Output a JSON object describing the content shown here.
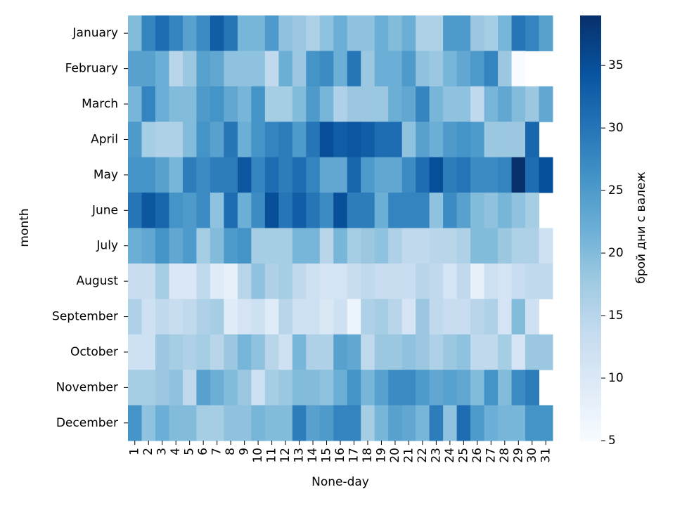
{
  "chart_data": {
    "type": "heatmap",
    "xlabel": "None-day",
    "ylabel": "month",
    "colorbar_label": "брой дни с валеж",
    "colormap": "Blues",
    "x": [
      1,
      2,
      3,
      4,
      5,
      6,
      7,
      8,
      9,
      10,
      11,
      12,
      13,
      14,
      15,
      16,
      17,
      18,
      19,
      20,
      21,
      22,
      23,
      24,
      25,
      26,
      27,
      28,
      29,
      30,
      31
    ],
    "y": [
      "January",
      "February",
      "March",
      "April",
      "May",
      "June",
      "July",
      "August",
      "September",
      "October",
      "November",
      "December"
    ],
    "values": [
      [
        20,
        28,
        31,
        28,
        24,
        27,
        33,
        30,
        21,
        21,
        25,
        19,
        18,
        16,
        19,
        22,
        19,
        19,
        22,
        20,
        22,
        16,
        16,
        25,
        25,
        18,
        17,
        21,
        30,
        28,
        24
      ],
      [
        24,
        24,
        22,
        15,
        18,
        24,
        23,
        19,
        19,
        19,
        14,
        22,
        18,
        26,
        27,
        22,
        30,
        18,
        22,
        22,
        25,
        19,
        18,
        21,
        23,
        25,
        28,
        18,
        5,
        null,
        null
      ],
      [
        21,
        28,
        22,
        20,
        20,
        25,
        26,
        23,
        21,
        26,
        17,
        17,
        20,
        25,
        21,
        16,
        18,
        18,
        18,
        22,
        23,
        28,
        21,
        19,
        19,
        14,
        21,
        23,
        20,
        18,
        23
      ],
      [
        25,
        17,
        16,
        16,
        20,
        26,
        24,
        30,
        22,
        26,
        28,
        29,
        25,
        30,
        35,
        33,
        34,
        33,
        31,
        31,
        19,
        24,
        22,
        25,
        26,
        25,
        18,
        18,
        18,
        32,
        null
      ],
      [
        26,
        26,
        24,
        21,
        29,
        27,
        29,
        29,
        34,
        28,
        31,
        29,
        31,
        28,
        23,
        23,
        32,
        25,
        23,
        23,
        27,
        31,
        35,
        29,
        30,
        27,
        27,
        28,
        39,
        31,
        35
      ],
      [
        30,
        34,
        32,
        26,
        25,
        27,
        19,
        31,
        22,
        27,
        35,
        30,
        33,
        30,
        27,
        35,
        29,
        29,
        22,
        28,
        28,
        28,
        19,
        27,
        24,
        20,
        19,
        21,
        19,
        17,
        null
      ],
      [
        22,
        23,
        26,
        23,
        25,
        17,
        20,
        25,
        26,
        17,
        17,
        17,
        21,
        21,
        15,
        21,
        17,
        18,
        19,
        16,
        14,
        14,
        15,
        15,
        16,
        20,
        20,
        18,
        16,
        16,
        12
      ],
      [
        13,
        13,
        17,
        10,
        10,
        14,
        9,
        8,
        15,
        19,
        16,
        17,
        14,
        12,
        11,
        11,
        13,
        14,
        13,
        13,
        13,
        15,
        14,
        11,
        14,
        8,
        12,
        11,
        13,
        14,
        14
      ],
      [
        16,
        12,
        14,
        13,
        14,
        16,
        17,
        9,
        11,
        12,
        9,
        15,
        12,
        12,
        10,
        12,
        7,
        16,
        17,
        15,
        11,
        18,
        14,
        13,
        13,
        15,
        16,
        11,
        20,
        12,
        null
      ],
      [
        12,
        12,
        18,
        17,
        16,
        17,
        15,
        18,
        21,
        19,
        15,
        12,
        21,
        16,
        16,
        24,
        23,
        14,
        18,
        18,
        19,
        18,
        16,
        18,
        19,
        14,
        14,
        17,
        11,
        18,
        18
      ],
      [
        17,
        17,
        18,
        19,
        14,
        24,
        22,
        20,
        18,
        12,
        17,
        18,
        20,
        20,
        19,
        22,
        26,
        21,
        24,
        27,
        27,
        25,
        23,
        24,
        23,
        20,
        26,
        20,
        27,
        29,
        null
      ],
      [
        26,
        19,
        22,
        20,
        20,
        17,
        17,
        19,
        19,
        21,
        20,
        20,
        29,
        24,
        25,
        28,
        28,
        17,
        21,
        24,
        23,
        21,
        29,
        19,
        31,
        25,
        22,
        21,
        21,
        26,
        26
      ]
    ],
    "zlim": [
      5,
      39
    ],
    "zticks": [
      5,
      10,
      15,
      20,
      25,
      30,
      35
    ]
  }
}
